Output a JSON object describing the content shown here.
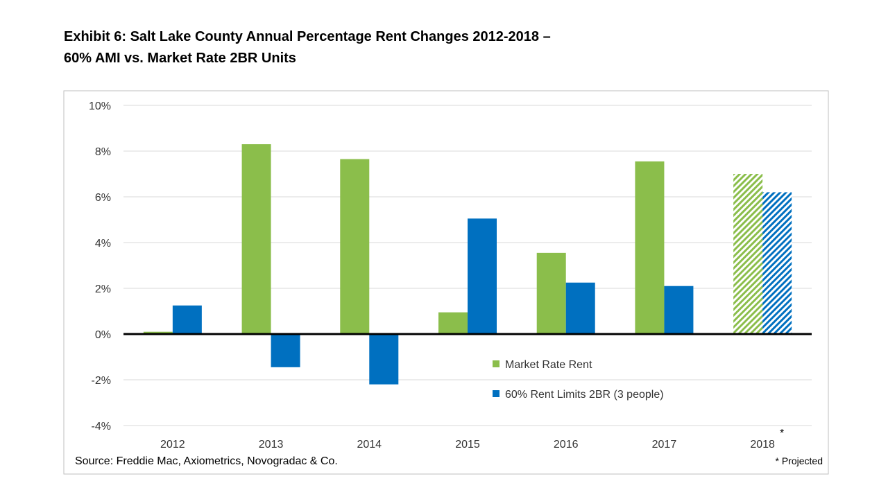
{
  "chart_data": {
    "type": "bar",
    "title": "Exhibit 6: Salt Lake County Annual Percentage Rent Changes 2012-2018 –",
    "subtitle": "60% AMI vs. Market Rate 2BR Units",
    "categories": [
      "2012",
      "2013",
      "2014",
      "2015",
      "2016",
      "2017",
      "2018"
    ],
    "category_marks": [
      "",
      "",
      "",
      "",
      "",
      "",
      "*"
    ],
    "series": [
      {
        "name": "Market Rate Rent",
        "color": "#8BBE4B",
        "values": [
          0.1,
          8.3,
          7.65,
          0.95,
          3.55,
          7.55,
          7.0
        ]
      },
      {
        "name": "60% Rent Limits 2BR (3 people)",
        "color": "#0070C0",
        "values": [
          1.25,
          -1.45,
          -2.2,
          5.05,
          2.25,
          2.1,
          6.2
        ]
      }
    ],
    "projected_categories": [
      "2018"
    ],
    "yticks": [
      "10%",
      "8%",
      "6%",
      "4%",
      "2%",
      "0%",
      "-2%",
      "-4%"
    ],
    "ytick_values": [
      10,
      8,
      6,
      4,
      2,
      0,
      -2,
      -4
    ],
    "ylim": [
      -4,
      10
    ],
    "grid": true,
    "legend_position": "center-right",
    "source": "Source: Freddie Mac, Axiometrics, Novogradac & Co.",
    "footnote": "* Projected"
  }
}
